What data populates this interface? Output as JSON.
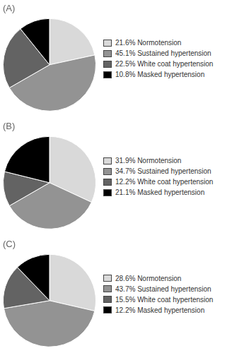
{
  "chart_data": [
    {
      "type": "pie",
      "title": "(A)",
      "categories": [
        "21.6% Normotension",
        "45.1% Sustained hypertension",
        "22.5% White coat hypertension",
        "10.8% Masked hypertension"
      ],
      "values": [
        21.6,
        45.1,
        22.5,
        10.8
      ],
      "colors": [
        "#d9d9d9",
        "#939393",
        "#636363",
        "#000000"
      ],
      "legend": "right"
    },
    {
      "type": "pie",
      "title": "(B)",
      "categories": [
        "31.9% Normotension",
        "34.7% Sustained hypertension",
        "12.2% White coat hypertension",
        "21.1% Masked hypertension"
      ],
      "values": [
        31.9,
        34.7,
        12.2,
        21.1
      ],
      "colors": [
        "#d9d9d9",
        "#939393",
        "#636363",
        "#000000"
      ],
      "legend": "right"
    },
    {
      "type": "pie",
      "title": "(C)",
      "categories": [
        "28.6% Normotension",
        "43.7% Sustained hypertension",
        "15.5% White coat hypertension",
        "12.2% Masked hypertension"
      ],
      "values": [
        28.6,
        43.7,
        15.5,
        12.2
      ],
      "colors": [
        "#d9d9d9",
        "#939393",
        "#636363",
        "#000000"
      ],
      "legend": "right"
    }
  ]
}
